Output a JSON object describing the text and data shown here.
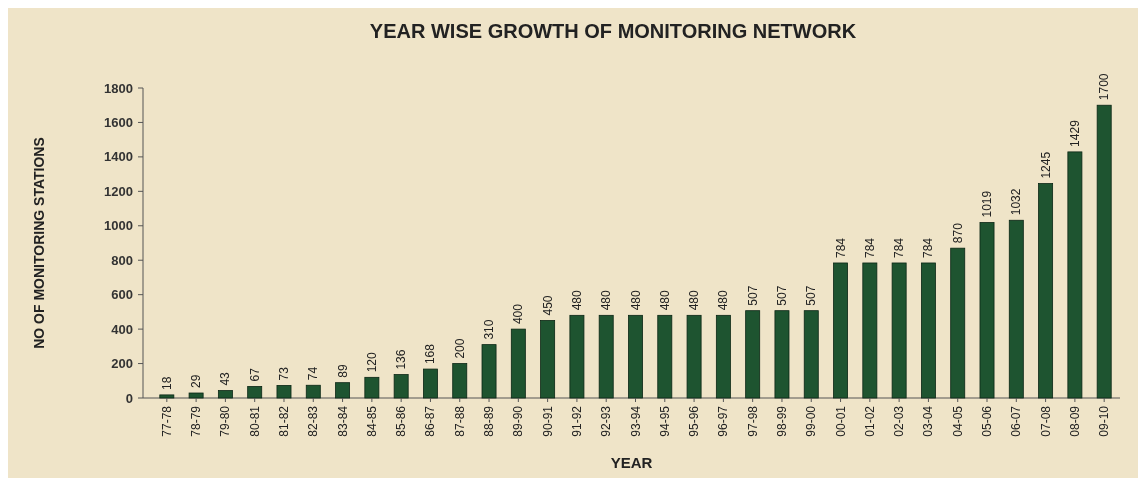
{
  "chart_data": {
    "type": "bar",
    "title": "YEAR WISE GROWTH OF MONITORING NETWORK",
    "xlabel": "YEAR",
    "ylabel": "NO OF MONITORING STATIONS",
    "categories": [
      "77-78",
      "78-79",
      "79-80",
      "80-81",
      "81-82",
      "82-83",
      "83-84",
      "84-85",
      "85-86",
      "86-87",
      "87-88",
      "88-89",
      "89-90",
      "90-91",
      "91-92",
      "92-93",
      "93-94",
      "94-95",
      "95-96",
      "96-97",
      "97-98",
      "98-99",
      "99-00",
      "00-01",
      "01-02",
      "02-03",
      "03-04",
      "04-05",
      "05-06",
      "06-07",
      "07-08",
      "08-09",
      "09-10"
    ],
    "values": [
      18,
      29,
      43,
      67,
      73,
      74,
      89,
      120,
      136,
      168,
      200,
      310,
      400,
      450,
      480,
      480,
      480,
      480,
      480,
      480,
      507,
      507,
      507,
      784,
      784,
      784,
      784,
      870,
      1019,
      1032,
      1245,
      1429,
      1700
    ],
    "color": "#1e5430",
    "ylim": [
      0,
      1800
    ],
    "yticks": [
      0,
      200,
      400,
      600,
      800,
      1000,
      1200,
      1400,
      1600,
      1800
    ],
    "grid": false,
    "data_labels": true
  }
}
